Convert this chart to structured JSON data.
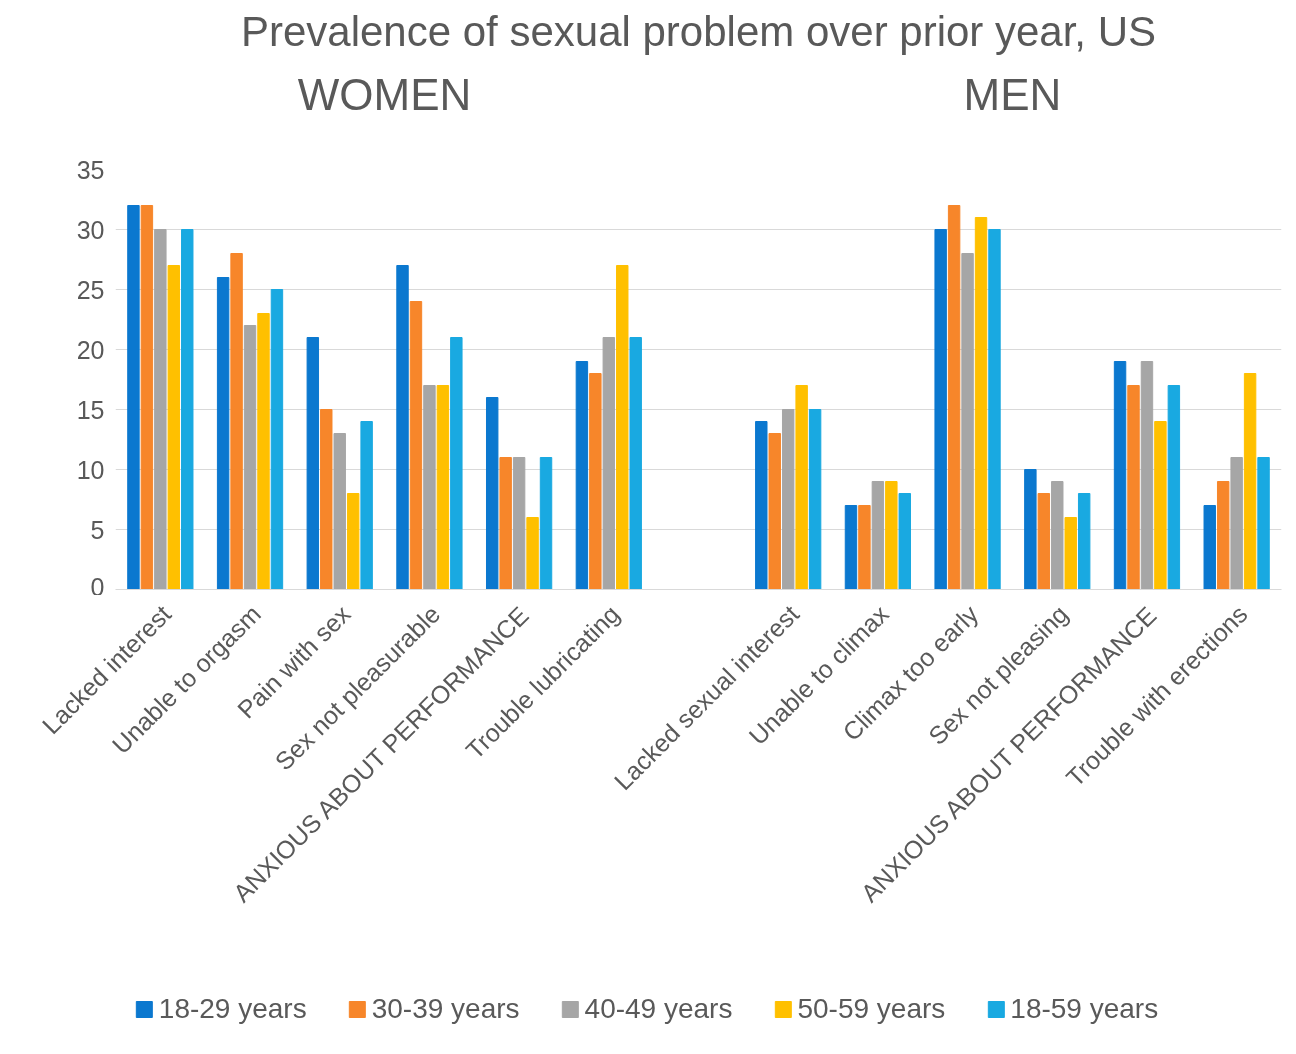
{
  "chart_data": {
    "type": "bar",
    "title": "Prevalence of sexual problem over prior year, US",
    "annotations": [
      "WOMEN",
      "MEN"
    ],
    "categories": [
      "Lacked interest",
      "Unable to orgasm",
      "Pain with sex",
      "Sex not pleasurable",
      "ANXIOUS ABOUT PERFORMANCE",
      "Trouble lubricating",
      null,
      "Lacked sexual interest",
      "Unable to climax",
      "Climax too early",
      "Sex not pleasing",
      "ANXIOUS ABOUT PERFORMANCE",
      "Trouble with erections"
    ],
    "series": [
      {
        "name": "18-29 years",
        "color": "#0b78cf",
        "values": [
          32,
          26,
          21,
          27,
          16,
          19,
          null,
          14,
          7,
          30,
          10,
          19,
          7
        ]
      },
      {
        "name": "30-39 years",
        "color": "#f7862a",
        "values": [
          32,
          28,
          15,
          24,
          11,
          18,
          null,
          13,
          7,
          32,
          8,
          17,
          9
        ]
      },
      {
        "name": "40-49 years",
        "color": "#a6a6a6",
        "values": [
          30,
          22,
          13,
          17,
          11,
          21,
          null,
          15,
          9,
          28,
          9,
          19,
          11
        ]
      },
      {
        "name": "50-59 years",
        "color": "#ffc000",
        "values": [
          27,
          23,
          8,
          17,
          6,
          27,
          null,
          17,
          9,
          31,
          6,
          14,
          18
        ]
      },
      {
        "name": "18-59 years",
        "color": "#19a9e1",
        "values": [
          30,
          25,
          14,
          21,
          11,
          21,
          null,
          15,
          8,
          30,
          8,
          17,
          11
        ]
      }
    ],
    "ylim": [
      0,
      35
    ],
    "yticks": [
      0,
      5,
      10,
      15,
      20,
      25,
      30,
      35
    ],
    "grid": "y",
    "legend": "bottom"
  }
}
